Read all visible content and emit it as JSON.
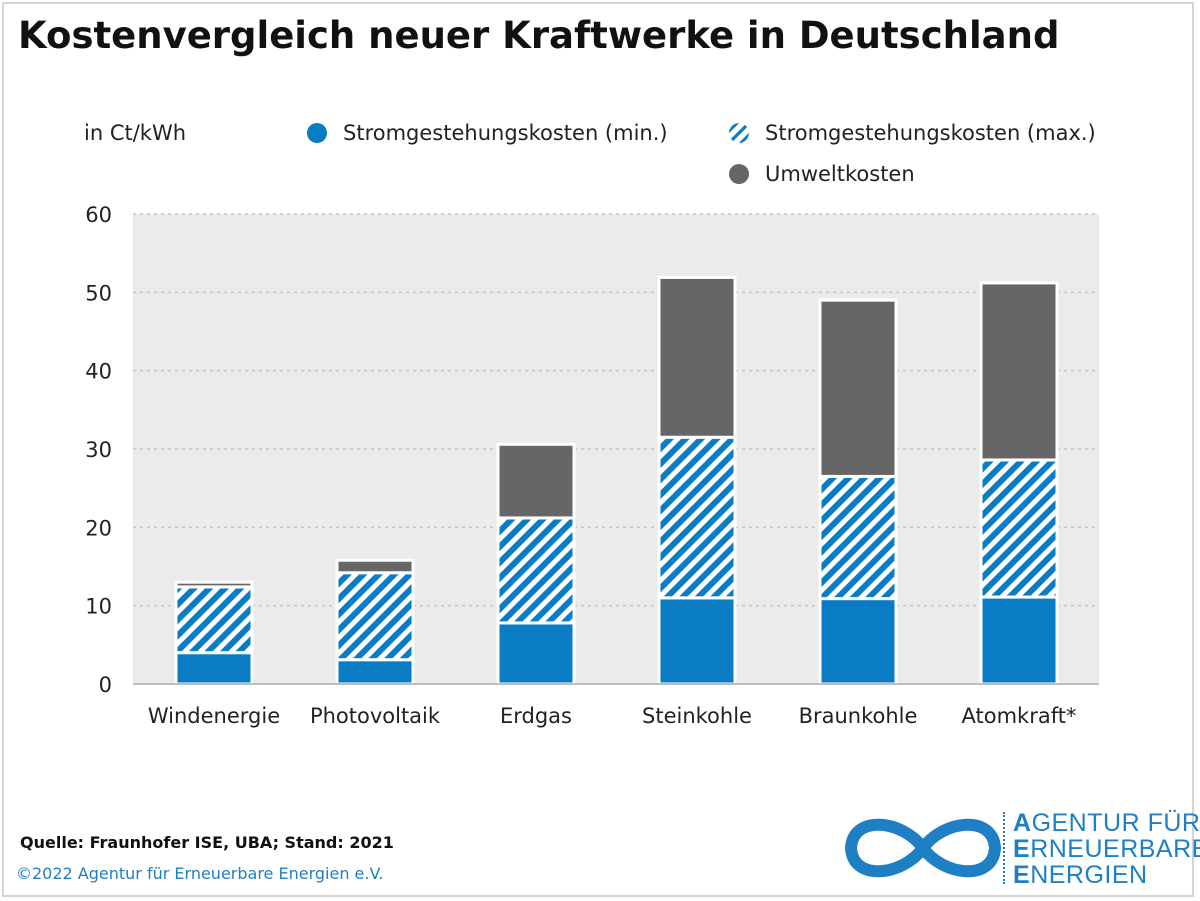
{
  "header": {
    "title": "Kostenvergleich neuer Kraftwerke in Deutschland"
  },
  "legend": {
    "items": [
      {
        "label": "Stromgestehungskosten (min.)",
        "kind": "solid",
        "color": "#0a7cc4"
      },
      {
        "label": "Stromgestehungskosten (max.)",
        "kind": "hatch",
        "color": "#0a7cc4"
      },
      {
        "label": "Umweltkosten",
        "kind": "solid",
        "color": "#666666"
      }
    ]
  },
  "chart_data": {
    "type": "bar",
    "stacked": true,
    "ylabel": "in Ct/kWh",
    "ylim": [
      0,
      60
    ],
    "yticks": [
      0,
      10,
      20,
      30,
      40,
      50,
      60
    ],
    "grid": true,
    "categories": [
      "Windenergie",
      "Photovoltaik",
      "Erdgas",
      "Steinkohle",
      "Braunkohle",
      "Atomkraft*"
    ],
    "series": [
      {
        "name": "Stromgestehungskosten (min.)",
        "values": [
          4,
          3.1,
          7.8,
          11,
          10.9,
          11.1
        ],
        "color": "#0a7cc4",
        "pattern": "solid"
      },
      {
        "name": "Stromgestehungskosten (max.)",
        "values": [
          8.4,
          11.1,
          13.4,
          20.5,
          15.6,
          17.5
        ],
        "color": "#0a7cc4",
        "pattern": "hatch"
      },
      {
        "name": "Umweltkosten",
        "values": [
          0.6,
          1.6,
          9.4,
          20.4,
          22.5,
          22.6
        ],
        "color": "#666666",
        "pattern": "solid"
      }
    ]
  },
  "footer": {
    "source": "Quelle: Fraunhofer ISE, UBA; Stand: 2021",
    "copyright": "©2022 Agentur für Erneuerbare Energien e.V."
  },
  "logo": {
    "lines": [
      {
        "first": "A",
        "rest": "GENTUR FÜR"
      },
      {
        "first": "E",
        "rest": "RNEUERBARE"
      },
      {
        "first": "E",
        "rest": "NERGIEN"
      }
    ],
    "color": "#1f7fc4",
    "icon": "infinity-icon"
  }
}
